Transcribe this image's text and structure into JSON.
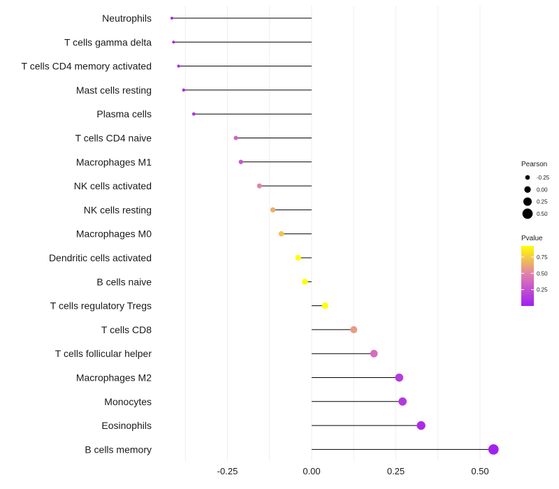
{
  "chart_data": {
    "type": "lollipop",
    "title": "",
    "xlabel": "",
    "ylabel": "",
    "xlim": [
      -0.42,
      0.56
    ],
    "x_ticks": [
      -0.25,
      0.0,
      0.25,
      0.5
    ],
    "x_tick_labels": [
      "-0.25",
      "0.00",
      "0.25",
      "0.50"
    ],
    "grid": "vertical",
    "categories": [
      "Neutrophils",
      "T cells gamma delta",
      "T cells CD4 memory activated",
      "Mast cells resting",
      "Plasma cells",
      "T cells CD4 naive",
      "Macrophages M1",
      "NK cells activated",
      "NK cells resting",
      "Macrophages M0",
      "Dendritic cells activated",
      "B cells naive",
      "T cells regulatory  Tregs ",
      "T cells CD8",
      "T cells follicular helper",
      "Macrophages M2",
      "Monocytes",
      "Eosinophils",
      "B cells memory"
    ],
    "pearson": [
      -0.415,
      -0.41,
      -0.395,
      -0.38,
      -0.35,
      -0.225,
      -0.21,
      -0.155,
      -0.115,
      -0.09,
      -0.04,
      -0.02,
      0.04,
      0.125,
      0.185,
      0.26,
      0.27,
      0.325,
      0.54
    ],
    "pvalue": [
      0.05,
      0.05,
      0.06,
      0.07,
      0.1,
      0.35,
      0.3,
      0.5,
      0.65,
      0.72,
      0.92,
      0.98,
      0.95,
      0.58,
      0.4,
      0.15,
      0.13,
      0.06,
      0.01
    ],
    "size_legend": {
      "title": "Pearson",
      "values": [
        -0.25,
        0.0,
        0.25,
        0.5
      ],
      "labels": [
        "-0.25",
        "0.00",
        "0.25",
        "0.50"
      ]
    },
    "color_legend": {
      "title": "Pvalue",
      "range": [
        0.0,
        0.92
      ],
      "ticks": [
        0.25,
        0.5,
        0.75
      ],
      "tick_labels": [
        "0.25",
        "0.50",
        "0.75"
      ],
      "low_color": "#a020f0",
      "high_color": "#ffff00"
    },
    "stem_color": "#000000",
    "grid_color": "#ebebeb"
  }
}
